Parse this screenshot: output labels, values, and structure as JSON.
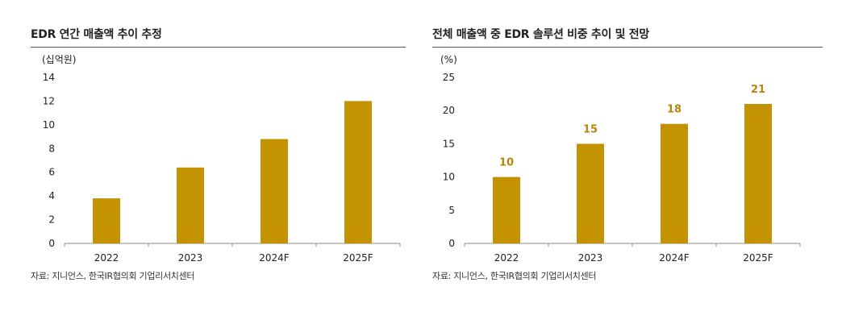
{
  "colors": {
    "bar": "#C39200",
    "label": "#B8860B",
    "axis": "#888888",
    "rule": "#555555"
  },
  "chart_data": [
    {
      "type": "bar",
      "title": "EDR 연간 매출액 추이 추정",
      "ylabel": "(십억원)",
      "xlabel": "",
      "categories": [
        "2022",
        "2023",
        "2024F",
        "2025F"
      ],
      "values": [
        3.8,
        6.4,
        8.8,
        12.0
      ],
      "ylim": [
        0,
        14
      ],
      "yticks": [
        0,
        2,
        4,
        6,
        8,
        10,
        12,
        14
      ],
      "data_labels": false,
      "source": "자료: 지니언스, 한국IR협의회 기업리서치센터"
    },
    {
      "type": "bar",
      "title": "전체 매출액 중 EDR 솔루션 비중 추이 및 전망",
      "ylabel": "(%)",
      "xlabel": "",
      "categories": [
        "2022",
        "2023",
        "2024F",
        "2025F"
      ],
      "values": [
        10,
        15,
        18,
        21
      ],
      "ylim": [
        0,
        25
      ],
      "yticks": [
        0,
        5,
        10,
        15,
        20,
        25
      ],
      "data_labels": true,
      "source": "자료: 지니언스, 한국IR협의회 기업리서치센터"
    }
  ]
}
